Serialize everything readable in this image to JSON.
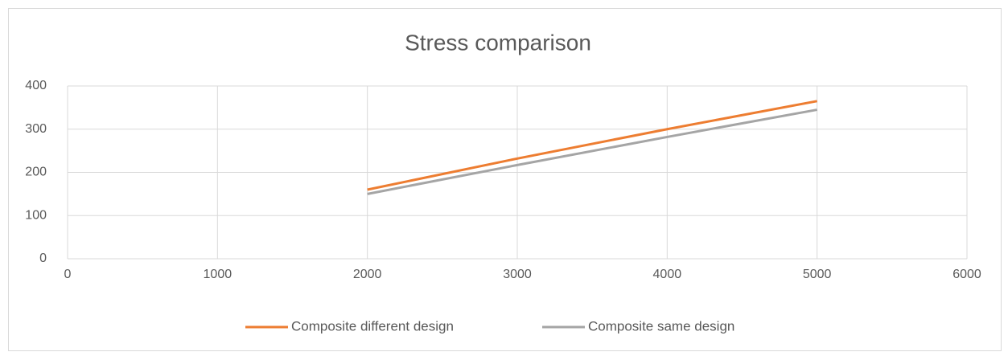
{
  "chart_data": {
    "type": "line",
    "title": "Stress comparison",
    "x": [
      2000,
      3000,
      4000,
      5000
    ],
    "series": [
      {
        "name": "Composite different design",
        "color": "#ed7d31",
        "values": [
          160,
          232,
          300,
          365
        ]
      },
      {
        "name": "Composite same design",
        "color": "#a5a5a5",
        "values": [
          150,
          217,
          282,
          345
        ]
      }
    ],
    "xlim": [
      0,
      6000
    ],
    "xticks": [
      0,
      1000,
      2000,
      3000,
      4000,
      5000,
      6000
    ],
    "ylim": [
      0,
      400
    ],
    "yticks": [
      0,
      100,
      200,
      300,
      400
    ],
    "grid": true,
    "legend": "bottom"
  }
}
